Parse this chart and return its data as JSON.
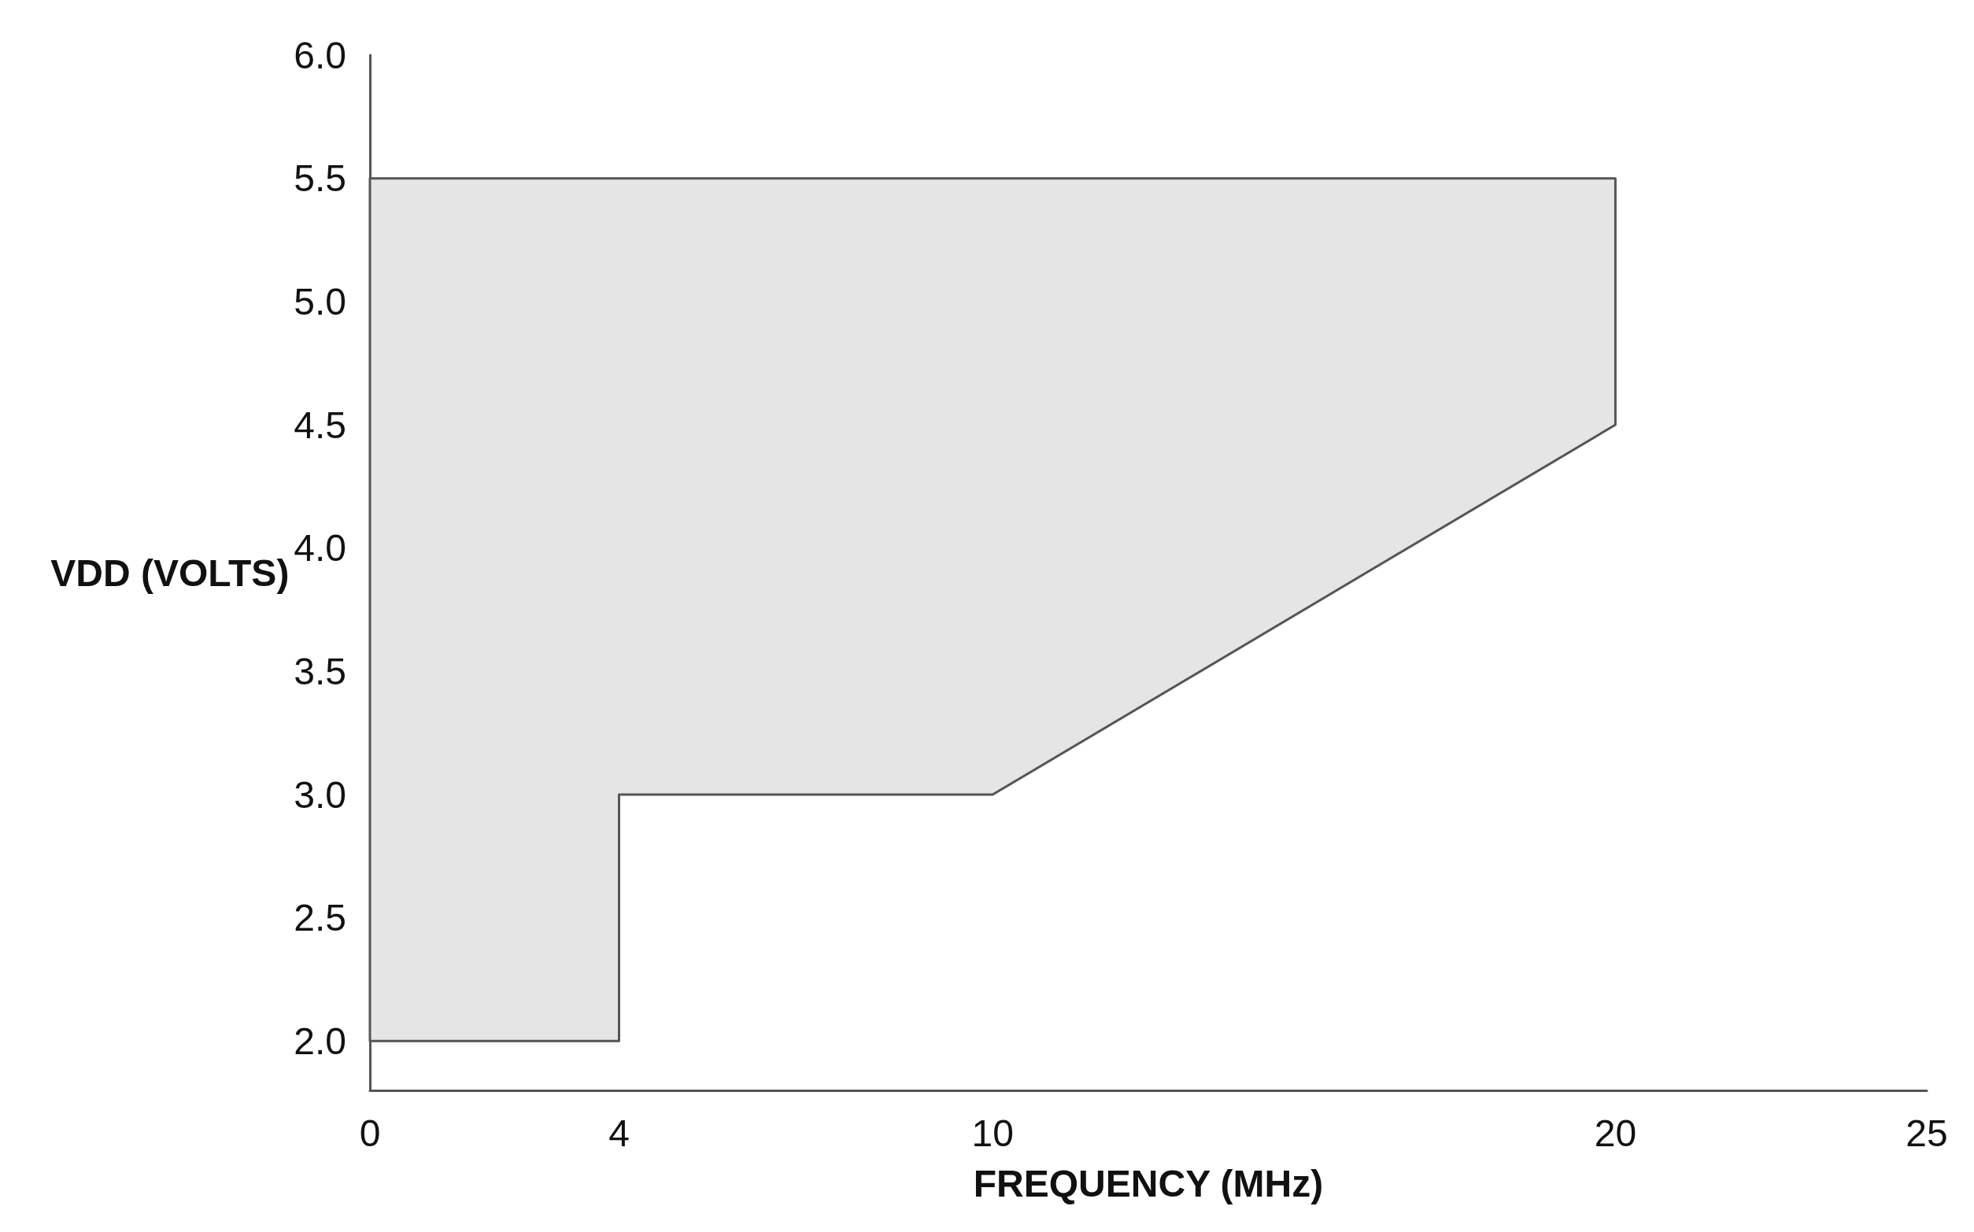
{
  "chart_data": {
    "type": "area",
    "xlabel": "FREQUENCY (MHz)",
    "ylabel": "VDD (VOLTS)",
    "xlim": [
      0,
      25
    ],
    "xticks": [
      0,
      4,
      10,
      20,
      25
    ],
    "ylim": [
      1.8,
      6.0
    ],
    "yticks": [
      {
        "value": 2,
        "label": "2.0"
      },
      2.5,
      {
        "value": 3,
        "label": "3.0"
      },
      3.5,
      {
        "value": 4,
        "label": "4.0"
      },
      4.5,
      {
        "value": 5,
        "label": "5.0"
      },
      5.5,
      {
        "value": 6,
        "label": "6.0"
      }
    ],
    "series": [
      {
        "color": "#e5e5e5",
        "x": [
          0,
          4,
          4,
          10,
          20,
          20,
          0
        ],
        "values": [
          2.0,
          2.0,
          3.0,
          3.0,
          4.5,
          5.5,
          5.5
        ]
      }
    ]
  }
}
